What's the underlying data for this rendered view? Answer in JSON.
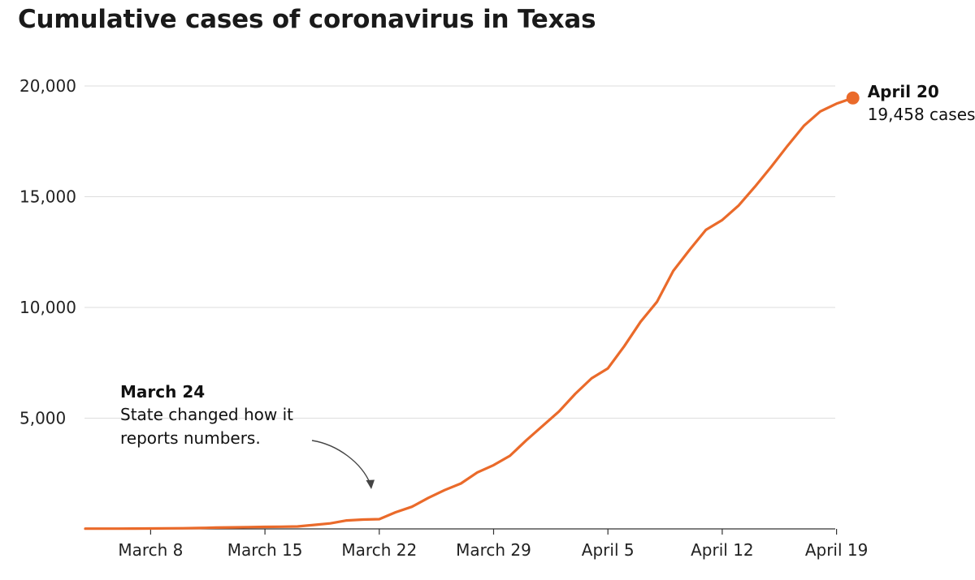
{
  "title": "Cumulative cases of coronavirus in Texas",
  "colors": {
    "series": "#ea6a2a",
    "grid": "#dddddd",
    "axis": "#333333",
    "text": "#222222"
  },
  "annotations": {
    "end": {
      "date": "April 20",
      "text": "19,458 cases"
    },
    "change": {
      "date": "March 24",
      "line1": "State changed how it",
      "line2": "reports numbers."
    }
  },
  "chart_data": {
    "type": "line",
    "title": "Cumulative cases of coronavirus in Texas",
    "xlabel": "",
    "ylabel": "",
    "x_ticks": [
      "March 8",
      "March 15",
      "March 22",
      "March 29",
      "April 5",
      "April 12",
      "April 19"
    ],
    "y_ticks": [
      "5,000",
      "10,000",
      "15,000",
      "20,000"
    ],
    "ylim": [
      0,
      20000
    ],
    "xlim": [
      "2020-03-04",
      "2020-04-20"
    ],
    "grid": true,
    "series": [
      {
        "x": [
          "2020-03-04",
          "2020-03-05",
          "2020-03-06",
          "2020-03-07",
          "2020-03-08",
          "2020-03-09",
          "2020-03-10",
          "2020-03-11",
          "2020-03-12",
          "2020-03-13",
          "2020-03-14",
          "2020-03-15",
          "2020-03-16",
          "2020-03-17",
          "2020-03-18",
          "2020-03-19",
          "2020-03-20",
          "2020-03-21",
          "2020-03-22",
          "2020-03-23",
          "2020-03-24",
          "2020-03-25",
          "2020-03-26",
          "2020-03-27",
          "2020-03-28",
          "2020-03-29",
          "2020-03-30",
          "2020-03-31",
          "2020-04-01",
          "2020-04-02",
          "2020-04-03",
          "2020-04-04",
          "2020-04-05",
          "2020-04-06",
          "2020-04-07",
          "2020-04-08",
          "2020-04-09",
          "2020-04-10",
          "2020-04-11",
          "2020-04-12",
          "2020-04-13",
          "2020-04-14",
          "2020-04-15",
          "2020-04-16",
          "2020-04-17",
          "2020-04-18",
          "2020-04-19",
          "2020-04-20"
        ],
        "values": [
          10,
          10,
          12,
          15,
          18,
          25,
          30,
          40,
          60,
          70,
          80,
          90,
          100,
          110,
          180,
          250,
          380,
          420,
          440,
          750,
          1000,
          1400,
          1750,
          2050,
          2550,
          2880,
          3300,
          4000,
          4650,
          5300,
          6100,
          6800,
          7250,
          8250,
          9350,
          10250,
          11650,
          12600,
          13500,
          13950,
          14600,
          15450,
          16350,
          17300,
          18200,
          18850,
          19200,
          19458
        ]
      }
    ]
  }
}
